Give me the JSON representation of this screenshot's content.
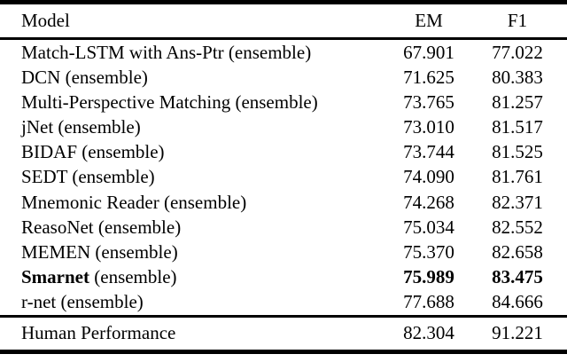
{
  "table": {
    "headers": {
      "model": "Model",
      "em": "EM",
      "f1": "F1"
    },
    "rows": [
      {
        "model": "Match-LSTM with Ans-Ptr (ensemble)",
        "em": "67.901",
        "f1": "77.022"
      },
      {
        "model": "DCN (ensemble)",
        "em": "71.625",
        "f1": "80.383"
      },
      {
        "model": "Multi-Perspective Matching (ensemble)",
        "em": "73.765",
        "f1": "81.257"
      },
      {
        "model": "jNet (ensemble)",
        "em": "73.010",
        "f1": "81.517"
      },
      {
        "model": "BIDAF (ensemble)",
        "em": "73.744",
        "f1": "81.525"
      },
      {
        "model": "SEDT (ensemble)",
        "em": "74.090",
        "f1": "81.761"
      },
      {
        "model": "Mnemonic Reader (ensemble)",
        "em": "74.268",
        "f1": "82.371"
      },
      {
        "model": "ReasoNet (ensemble)",
        "em": "75.034",
        "f1": "82.552"
      },
      {
        "model": "MEMEN (ensemble)",
        "em": "75.370",
        "f1": "82.658"
      },
      {
        "model_name": "Smarnet",
        "model_rest": " (ensemble)",
        "em": "75.989",
        "f1": "83.475"
      },
      {
        "model": "r-net (ensemble)",
        "em": "77.688",
        "f1": "84.666"
      }
    ],
    "footer": {
      "model": "Human Performance",
      "em": "82.304",
      "f1": "91.221"
    },
    "colors": {
      "text": "#000000",
      "background": "#ffffff",
      "rule": "#000000"
    }
  }
}
